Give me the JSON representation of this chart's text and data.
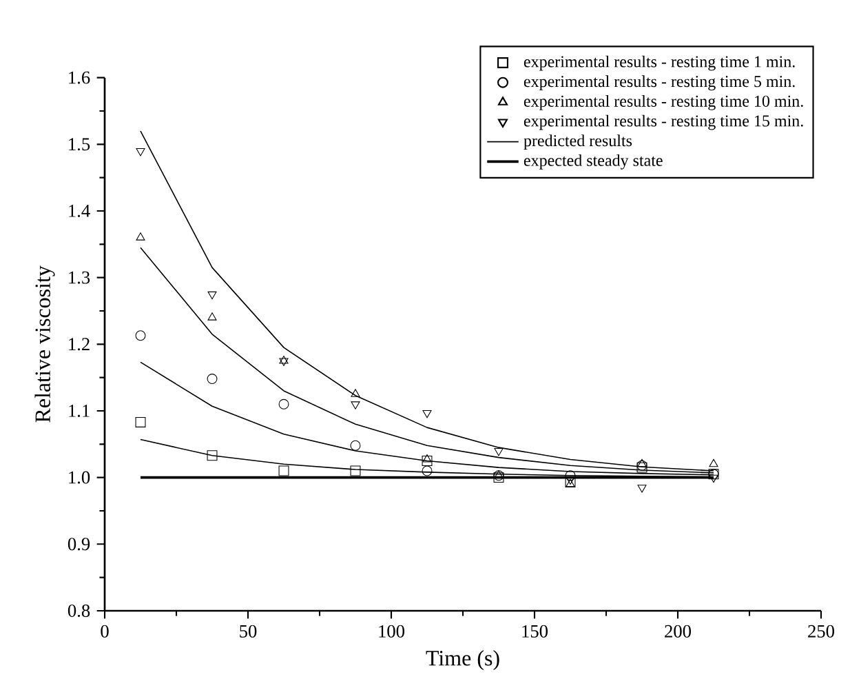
{
  "chart_data": {
    "type": "scatter",
    "xlabel": "Time (s)",
    "ylabel": "Relative viscosity",
    "xlim": [
      0,
      250
    ],
    "ylim": [
      0.8,
      1.6
    ],
    "xticks": [
      0,
      50,
      100,
      150,
      200,
      250
    ],
    "yticks": [
      {
        "value": 0.8,
        "label": "0.8"
      },
      {
        "value": 0.9,
        "label": "0.9"
      },
      {
        "value": 1.0,
        "label": "1.0"
      },
      {
        "value": 1.1,
        "label": "1.1"
      },
      {
        "value": 1.2,
        "label": "1.2"
      },
      {
        "value": 1.3,
        "label": "1.3"
      },
      {
        "value": 1.4,
        "label": "1.4"
      },
      {
        "value": 1.5,
        "label": "1.5"
      },
      {
        "value": 1.6,
        "label": "1.6"
      }
    ],
    "grid": false,
    "legend": "top right",
    "x": [
      12.5,
      37.5,
      62.5,
      87.5,
      112.5,
      137.5,
      162.5,
      187.5,
      212.5
    ],
    "series": [
      {
        "name": "experimental results - resting time 1 min.",
        "marker": "square",
        "color": "#000000",
        "values": [
          1.083,
          1.033,
          1.01,
          1.01,
          1.025,
          1.0,
          0.993,
          1.015,
          1.005
        ]
      },
      {
        "name": "experimental results - resting time 5 min.",
        "marker": "circle",
        "color": "#000000",
        "values": [
          1.213,
          1.148,
          1.11,
          1.048,
          1.01,
          1.003,
          1.003,
          1.018,
          1.005
        ]
      },
      {
        "name": "experimental results - resting time 10 min.",
        "marker": "triangle",
        "color": "#000000",
        "values": [
          1.36,
          1.24,
          1.175,
          1.125,
          1.027,
          1.003,
          0.99,
          1.02,
          1.02
        ]
      },
      {
        "name": "experimental results - resting time 15 min.",
        "marker": "triangle_down",
        "color": "#000000",
        "values": [
          1.49,
          1.275,
          1.175,
          1.11,
          1.097,
          1.04,
          0.997,
          0.985,
          1.0
        ]
      },
      {
        "name": "predicted results",
        "type": "line",
        "line_style": "solid",
        "color": "#000000",
        "values": [
          1.057,
          1.033,
          1.02,
          1.012,
          1.008,
          1.005,
          1.003,
          1.002,
          1.001
        ]
      },
      {
        "type": "line",
        "line_style": "solid",
        "color": "#000000",
        "values": [
          1.173,
          1.107,
          1.065,
          1.04,
          1.025,
          1.015,
          1.009,
          1.006,
          1.004
        ]
      },
      {
        "type": "line",
        "line_style": "solid",
        "color": "#000000",
        "values": [
          1.345,
          1.215,
          1.13,
          1.08,
          1.048,
          1.03,
          1.018,
          1.011,
          1.007
        ]
      },
      {
        "type": "line",
        "line_style": "solid",
        "color": "#000000",
        "values": [
          1.52,
          1.315,
          1.195,
          1.123,
          1.075,
          1.045,
          1.027,
          1.016,
          1.01
        ]
      },
      {
        "name": "expected steady state",
        "type": "line",
        "line_style": "solid",
        "color": "#000000",
        "x": [
          12.5,
          212.5
        ],
        "values": [
          1.0,
          1.0
        ]
      }
    ]
  }
}
